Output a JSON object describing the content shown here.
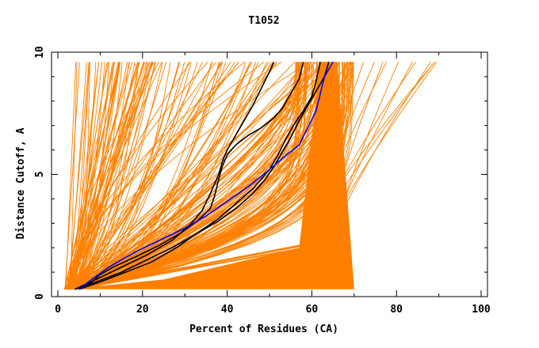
{
  "chart_data": {
    "type": "line",
    "title": "T1052",
    "xlabel": "Percent of Residues (CA)",
    "ylabel": "Distance Cutoff, A",
    "xlim": [
      0,
      100
    ],
    "ylim": [
      0,
      10
    ],
    "x_ticks": [
      "0",
      "20",
      "40",
      "60",
      "80",
      "100"
    ],
    "y_ticks": [
      "0",
      "5",
      "10"
    ],
    "grid": false,
    "legend": "none",
    "colors": {
      "models": "#ff8000",
      "highlight_black": "#000000",
      "highlight_blue": "#0000ff",
      "axes": "#000000"
    },
    "highlighted_series": [
      {
        "color": "#000000",
        "points": [
          [
            5,
            0.3
          ],
          [
            8,
            0.6
          ],
          [
            10,
            0.9
          ],
          [
            13,
            1.2
          ],
          [
            18,
            1.6
          ],
          [
            24,
            2.1
          ],
          [
            29,
            2.6
          ],
          [
            33,
            3.1
          ],
          [
            36,
            3.6
          ],
          [
            37,
            4.1
          ],
          [
            38,
            4.8
          ],
          [
            38.8,
            5.3
          ],
          [
            40,
            5.8
          ],
          [
            42,
            6.2
          ],
          [
            45,
            6.6
          ],
          [
            48,
            6.9
          ],
          [
            51,
            7.3
          ],
          [
            53,
            7.7
          ],
          [
            55,
            8.3
          ],
          [
            57,
            8.9
          ],
          [
            58,
            9.6
          ]
        ]
      },
      {
        "color": "#000000",
        "points": [
          [
            4,
            0.3
          ],
          [
            9,
            0.7
          ],
          [
            15,
            1.2
          ],
          [
            21,
            1.7
          ],
          [
            27,
            2.3
          ],
          [
            31,
            2.9
          ],
          [
            34,
            3.5
          ],
          [
            36,
            4.2
          ],
          [
            38,
            5
          ],
          [
            39,
            5.6
          ],
          [
            40,
            6
          ],
          [
            42,
            6.6
          ],
          [
            44,
            7.2
          ],
          [
            46,
            7.8
          ],
          [
            48,
            8.5
          ],
          [
            50,
            9.2
          ],
          [
            51,
            9.6
          ]
        ]
      },
      {
        "color": "#000000",
        "points": [
          [
            5,
            0.3
          ],
          [
            10,
            0.6
          ],
          [
            16,
            1
          ],
          [
            22,
            1.4
          ],
          [
            28,
            2
          ],
          [
            33,
            2.6
          ],
          [
            38,
            3.2
          ],
          [
            42,
            3.8
          ],
          [
            46,
            4.4
          ],
          [
            50,
            5.2
          ],
          [
            52,
            5.8
          ],
          [
            54,
            6.5
          ],
          [
            56,
            7.1
          ],
          [
            58,
            7.6
          ],
          [
            60,
            8.2
          ],
          [
            61,
            8.8
          ],
          [
            62,
            9.6
          ]
        ]
      },
      {
        "color": "#000000",
        "points": [
          [
            4,
            0.3
          ],
          [
            9,
            0.6
          ],
          [
            15,
            1
          ],
          [
            21,
            1.5
          ],
          [
            27,
            2
          ],
          [
            33,
            2.6
          ],
          [
            38,
            3.1
          ],
          [
            42,
            3.6
          ],
          [
            46,
            4.2
          ],
          [
            49,
            4.8
          ],
          [
            51,
            5.3
          ],
          [
            53,
            5.9
          ],
          [
            55,
            6.5
          ],
          [
            57,
            7.2
          ],
          [
            59,
            7.8
          ],
          [
            61,
            8.4
          ],
          [
            63,
            9
          ],
          [
            64,
            9.6
          ]
        ]
      },
      {
        "color": "#0000ff",
        "points": [
          [
            5,
            0.3
          ],
          [
            8,
            0.7
          ],
          [
            12,
            1.2
          ],
          [
            18,
            1.8
          ],
          [
            24,
            2.3
          ],
          [
            30,
            2.8
          ],
          [
            35,
            3.3
          ],
          [
            40,
            3.9
          ],
          [
            45,
            4.5
          ],
          [
            50,
            5.2
          ],
          [
            54,
            5.8
          ],
          [
            57,
            6.2
          ],
          [
            59,
            6.9
          ],
          [
            61,
            7.6
          ],
          [
            62,
            8.3
          ],
          [
            63,
            9
          ],
          [
            65,
            9.6
          ]
        ]
      }
    ]
  }
}
